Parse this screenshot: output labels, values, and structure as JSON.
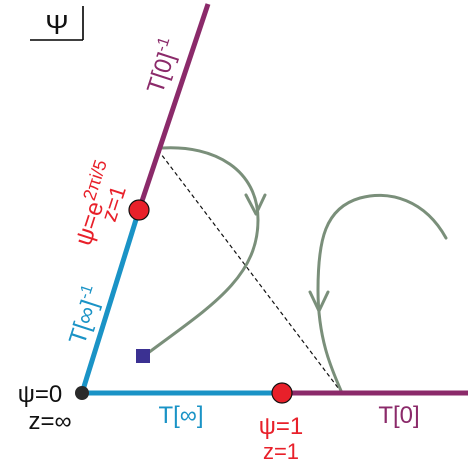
{
  "corner_label": "Ψ",
  "colors": {
    "purple": "#8b2a6a",
    "blue": "#1a93c6",
    "red": "#e8202a",
    "flow": "#7a8f7a",
    "dark": "#2a2a2a",
    "marker": "#3b3192"
  },
  "lines": {
    "t0_inv": {
      "base": "T[0]",
      "exp": "-1"
    },
    "t_inf_inv": {
      "base": "T[∞]",
      "exp": "-1"
    },
    "t_inf": "T[∞]",
    "t0": "T[0]"
  },
  "points": {
    "fifth_root": {
      "psi_prefix": "ψ=e",
      "psi_exp": "2πi/5",
      "z": "z=1"
    },
    "origin": {
      "psi": "ψ=0",
      "z": "z=∞"
    },
    "unit": {
      "psi": "ψ=1",
      "z": "z=1"
    }
  }
}
